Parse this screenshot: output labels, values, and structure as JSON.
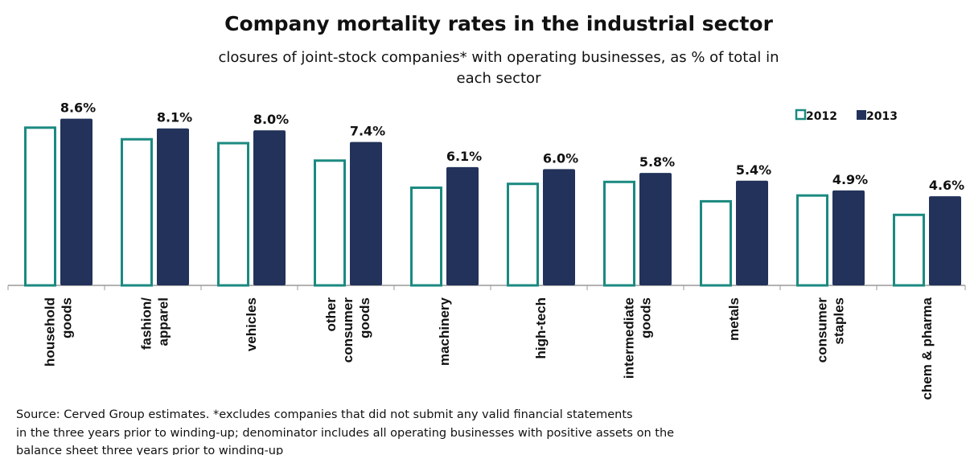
{
  "chart_data": {
    "type": "bar",
    "title": "Company mortality rates in the industrial sector",
    "subtitle": [
      "closures of joint-stock companies* with operating businesses, as % of total in",
      "each sector"
    ],
    "categories": [
      [
        "household",
        "goods"
      ],
      [
        "fashion/",
        "apparel"
      ],
      [
        "vehicles"
      ],
      [
        "other",
        "consumer",
        "goods"
      ],
      [
        "machinery"
      ],
      [
        "high-tech"
      ],
      [
        "intermediate",
        "goods"
      ],
      [
        "metals"
      ],
      [
        "consumer",
        "staples"
      ],
      [
        "chem & pharma"
      ]
    ],
    "series": [
      {
        "name": "2012",
        "color": "#1b8a80",
        "values": [
          8.2,
          7.6,
          7.4,
          6.5,
          5.1,
          5.3,
          5.4,
          4.4,
          4.7,
          3.7
        ]
      },
      {
        "name": "2013",
        "color": "#22325a",
        "values": [
          8.6,
          8.1,
          8.0,
          7.4,
          6.1,
          6.0,
          5.8,
          5.4,
          4.9,
          4.6
        ],
        "value_labels": [
          "8.6%",
          "8.1%",
          "8.0%",
          "7.4%",
          "6.1%",
          "6.0%",
          "5.8%",
          "5.4%",
          "4.9%",
          "4.6%"
        ]
      }
    ],
    "ylim": [
      0,
      9
    ],
    "legend": "upper right",
    "source": [
      "Source: Cerved Group estimates.  *excludes companies that did not submit any valid financial statements",
      "in the three years prior to winding-up; denominator includes all operating businesses with positive assets on the",
      "balance sheet three years prior to winding-up"
    ]
  }
}
